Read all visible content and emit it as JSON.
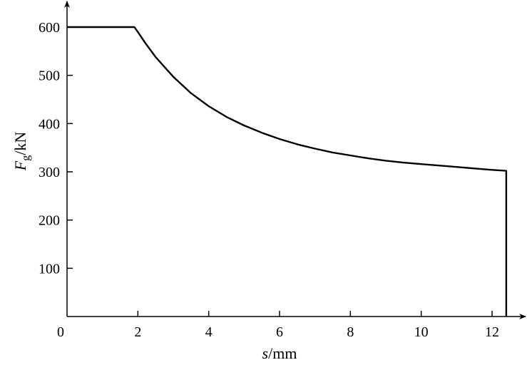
{
  "chart_data": {
    "type": "line",
    "title": "",
    "xlabel": {
      "symbol": "s",
      "unit": "/mm"
    },
    "ylabel": {
      "symbol": "F",
      "subscript": "g",
      "unit": "/kN"
    },
    "xlim": [
      0,
      13
    ],
    "ylim": [
      0,
      650
    ],
    "x_ticks": [
      0,
      2,
      4,
      6,
      8,
      10,
      12
    ],
    "y_ticks": [
      100,
      200,
      300,
      400,
      500,
      600
    ],
    "grid": false,
    "series": [
      {
        "x": [
          0,
          1.9,
          2.0,
          2.2,
          2.5,
          3.0,
          3.5,
          4.0,
          4.5,
          5.0,
          5.5,
          6.0,
          6.5,
          7.0,
          7.5,
          8.0,
          8.5,
          9.0,
          9.5,
          10.0,
          10.5,
          11.0,
          11.5,
          12.0,
          12.4,
          12.4
        ],
        "y": [
          600,
          600,
          590,
          568,
          538,
          497,
          463,
          436,
          414,
          396,
          381,
          368,
          357,
          348,
          340,
          334,
          328,
          323,
          319,
          316,
          313,
          310,
          307,
          304,
          302,
          0
        ]
      }
    ]
  }
}
